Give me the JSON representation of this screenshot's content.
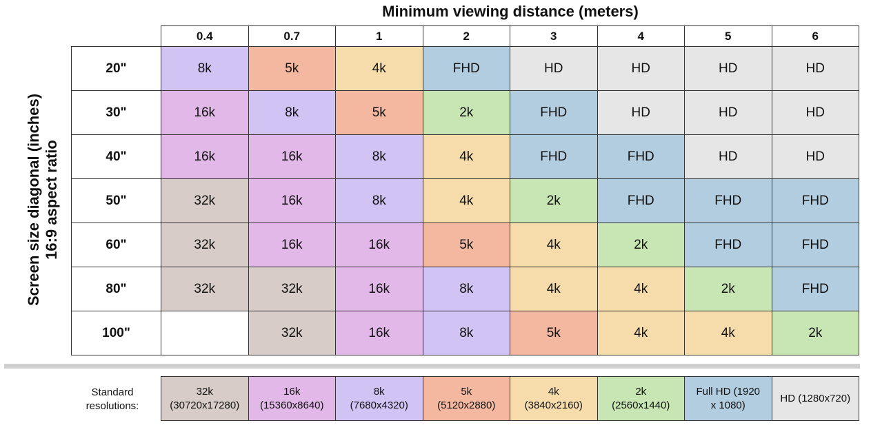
{
  "chart_data": {
    "type": "table",
    "title": "Minimum viewing distance (meters)",
    "ylabel_line1": "Screen size diagonal (inches)",
    "ylabel_line2": "16:9 aspect ratio",
    "columns": [
      "0.4",
      "0.7",
      "1",
      "2",
      "3",
      "4",
      "5",
      "6"
    ],
    "rows": [
      {
        "label": "20\"",
        "values": [
          "8k",
          "5k",
          "4k",
          "FHD",
          "HD",
          "HD",
          "HD",
          "HD"
        ]
      },
      {
        "label": "30\"",
        "values": [
          "16k",
          "8k",
          "5k",
          "2k",
          "FHD",
          "HD",
          "HD",
          "HD"
        ]
      },
      {
        "label": "40\"",
        "values": [
          "16k",
          "16k",
          "8k",
          "4k",
          "FHD",
          "FHD",
          "HD",
          "HD"
        ]
      },
      {
        "label": "50\"",
        "values": [
          "32k",
          "16k",
          "8k",
          "4k",
          "2k",
          "FHD",
          "FHD",
          "FHD"
        ]
      },
      {
        "label": "60\"",
        "values": [
          "32k",
          "16k",
          "16k",
          "5k",
          "4k",
          "2k",
          "FHD",
          "FHD"
        ]
      },
      {
        "label": "80\"",
        "values": [
          "32k",
          "32k",
          "16k",
          "8k",
          "4k",
          "4k",
          "2k",
          "FHD"
        ]
      },
      {
        "label": "100\"",
        "values": [
          "",
          "32k",
          "16k",
          "8k",
          "5k",
          "4k",
          "4k",
          "2k"
        ]
      }
    ],
    "colors": {
      "32k": "#d7ccc8",
      "16k": "#e2b8e8",
      "8k": "#d2c3f5",
      "5k": "#f4b8a0",
      "4k": "#f6dcab",
      "2k": "#c7e6b3",
      "FHD": "#b3cde0",
      "HD": "#e6e6e6"
    },
    "legend_label": "Standard resolutions:",
    "legend": [
      {
        "key": "32k",
        "line1": "32k",
        "line2": "(30720x17280)"
      },
      {
        "key": "16k",
        "line1": "16k",
        "line2": "(15360x8640)"
      },
      {
        "key": "8k",
        "line1": "8k",
        "line2": "(7680x4320)"
      },
      {
        "key": "5k",
        "line1": "5k",
        "line2": "(5120x2880)"
      },
      {
        "key": "4k",
        "line1": "4k",
        "line2": "(3840x2160)"
      },
      {
        "key": "2k",
        "line1": "2k",
        "line2": "(2560x1440)"
      },
      {
        "key": "FHD",
        "line1": "Full HD (1920",
        "line2": "x 1080)"
      },
      {
        "key": "HD",
        "line1": "HD (1280x720)",
        "line2": ""
      }
    ]
  }
}
